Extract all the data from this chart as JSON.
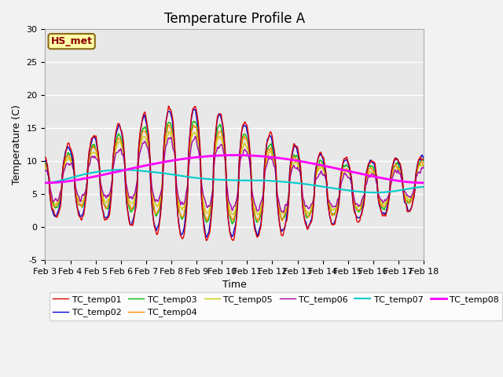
{
  "title": "Temperature Profile A",
  "xlabel": "Time",
  "ylabel": "Temperature (C)",
  "ylim": [
    -5,
    30
  ],
  "annotation": "HS_met",
  "plot_bg": "#e8e8e8",
  "fig_bg": "#f2f2f2",
  "series_colors": {
    "TC_temp01": "#dd0000",
    "TC_temp02": "#0000dd",
    "TC_temp03": "#00bb00",
    "TC_temp04": "#ff8800",
    "TC_temp05": "#cccc00",
    "TC_temp06": "#aa00aa",
    "TC_temp07": "#00cccc",
    "TC_temp08": "#ff00ff"
  },
  "xtick_labels": [
    "Feb 3",
    "Feb 4",
    "Feb 5",
    "Feb 6",
    "Feb 7",
    "Feb 8",
    "Feb 9",
    "Feb 10",
    "Feb 11",
    "Feb 12",
    "Feb 13",
    "Feb 14",
    "Feb 15",
    "Feb 16",
    "Feb 17",
    "Feb 18"
  ],
  "ytick_vals": [
    -5,
    0,
    5,
    10,
    15,
    20,
    25,
    30
  ],
  "legend_entries": [
    "TC_temp01",
    "TC_temp02",
    "TC_temp03",
    "TC_temp04",
    "TC_temp05",
    "TC_temp06",
    "TC_temp07",
    "TC_temp08"
  ],
  "title_fontsize": 12,
  "axis_label_fontsize": 9,
  "tick_fontsize": 8,
  "legend_fontsize": 8
}
